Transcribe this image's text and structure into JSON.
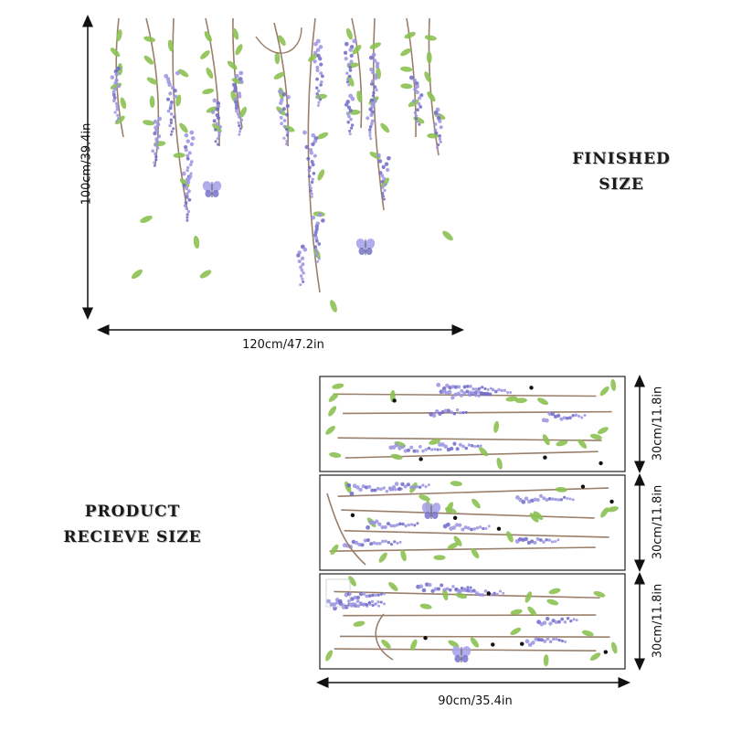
{
  "finished": {
    "title_line1": "FINISHED",
    "title_line2": "SIZE",
    "height_label": "100cm/39.4in",
    "width_label": "120cm/47.2in"
  },
  "product": {
    "title_line1": "PRODUCT",
    "title_line2": "RECIEVE SIZE",
    "sheet_height_labels": [
      "30cm/11.8in",
      "30cm/11.8in",
      "30cm/11.8in"
    ],
    "width_label": "90cm/35.4in"
  },
  "colors": {
    "flower": "#9a93e0",
    "flower_dark": "#6f69c9",
    "leaf": "#8cc152",
    "stem": "#9a7f6a",
    "butterfly": "#a9a3ea"
  },
  "icons": [
    "wisteria-flower-icon",
    "leaf-icon",
    "butterfly-icon",
    "vine-icon",
    "dimension-arrow-icon"
  ]
}
